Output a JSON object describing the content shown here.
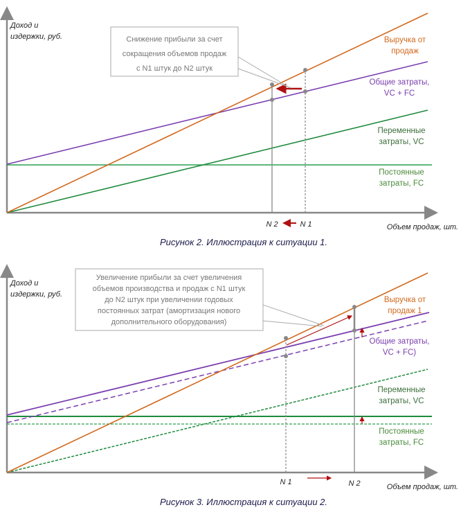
{
  "colors": {
    "revenue": "#d2691e",
    "total": "#7b3fb0",
    "variable": "#1e8a3c",
    "fixed": "#2aa050",
    "axis": "#888888",
    "arrow": "#b01010",
    "marker": "#888888"
  },
  "figure1": {
    "y_axis_label": [
      "Доход и",
      "издержки, руб."
    ],
    "x_axis_label": "Объем продаж, шт.",
    "callout": [
      "Снижение прибыли за счет",
      "сокращения объемов продаж",
      "с N1 штук  до N2 штук"
    ],
    "revenue_label": [
      "Выручка от",
      "продаж"
    ],
    "total_label": [
      "Общие затраты,",
      "VC + FC"
    ],
    "variable_label": [
      "Переменные",
      "затраты, VC"
    ],
    "fixed_label": [
      "Постоянные",
      "затраты, FC"
    ],
    "n2": "N 2",
    "n1": "N 1",
    "caption": "Рисунок 2. Иллюстрация к ситуации 1."
  },
  "figure2": {
    "y_axis_label": [
      "Доход и",
      "издержки, руб."
    ],
    "x_axis_label": "Объем продаж, шт.",
    "callout": [
      "Увеличение прибыли за счет увеличения",
      "объемов производства и продаж с N1 штук",
      "до N2 штук  при увеличении годовых",
      "постоянных затрат (амортизация нового",
      "дополнительного оборудования)"
    ],
    "revenue_label": [
      "Выручка от",
      "продаж 1"
    ],
    "total_label": [
      "Общие затраты,",
      "VC + FC)"
    ],
    "variable_label": [
      "Переменные",
      "затраты, VC"
    ],
    "fixed_label": [
      "Постоянные",
      "затраты, FC"
    ],
    "n1": "N 1",
    "n2": "N 2",
    "caption": "Рисунок 3. Иллюстрация к ситуации 2."
  }
}
